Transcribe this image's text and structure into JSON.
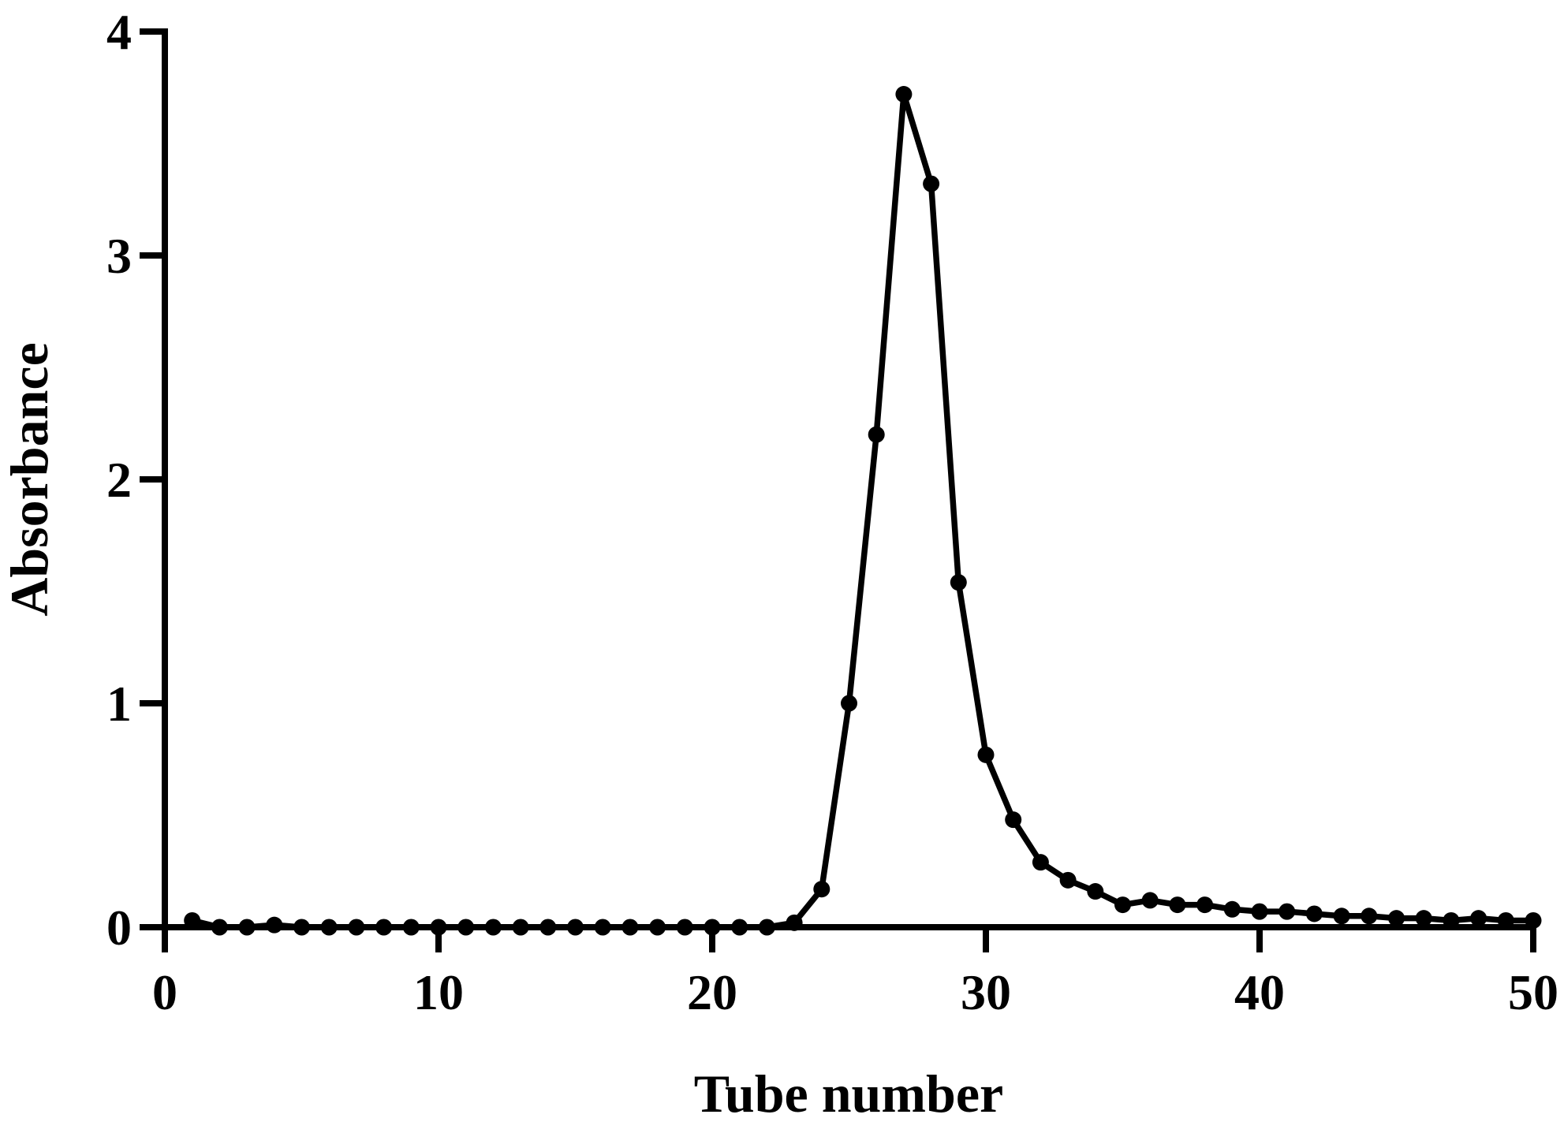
{
  "chart_data": {
    "type": "line",
    "x_label": "Tube number",
    "y_label": "Absorbance",
    "x": [
      1,
      2,
      3,
      4,
      5,
      6,
      7,
      8,
      9,
      10,
      11,
      12,
      13,
      14,
      15,
      16,
      17,
      18,
      19,
      20,
      21,
      22,
      23,
      24,
      25,
      26,
      27,
      28,
      29,
      30,
      31,
      32,
      33,
      34,
      35,
      36,
      37,
      38,
      39,
      40,
      41,
      42,
      43,
      44,
      45,
      46,
      47,
      48,
      49,
      50
    ],
    "series": [
      {
        "color": "#000000",
        "values": [
          0.03,
          0,
          0,
          0.01,
          0,
          0,
          0,
          0,
          0,
          0,
          0,
          0,
          0,
          0,
          0,
          0,
          0,
          0,
          0,
          0,
          0,
          0,
          0.02,
          0.17,
          1.0,
          2.2,
          3.72,
          3.32,
          1.54,
          0.77,
          0.48,
          0.29,
          0.21,
          0.16,
          0.1,
          0.12,
          0.1,
          0.1,
          0.08,
          0.07,
          0.07,
          0.06,
          0.05,
          0.05,
          0.04,
          0.04,
          0.03,
          0.04,
          0.03,
          0.03
        ]
      }
    ],
    "xlim": [
      0,
      50
    ],
    "xticks": [
      0,
      10,
      20,
      30,
      40,
      50
    ],
    "ylim": [
      0,
      4
    ],
    "yticks": [
      0,
      1,
      2,
      3,
      4
    ],
    "grid": false
  }
}
